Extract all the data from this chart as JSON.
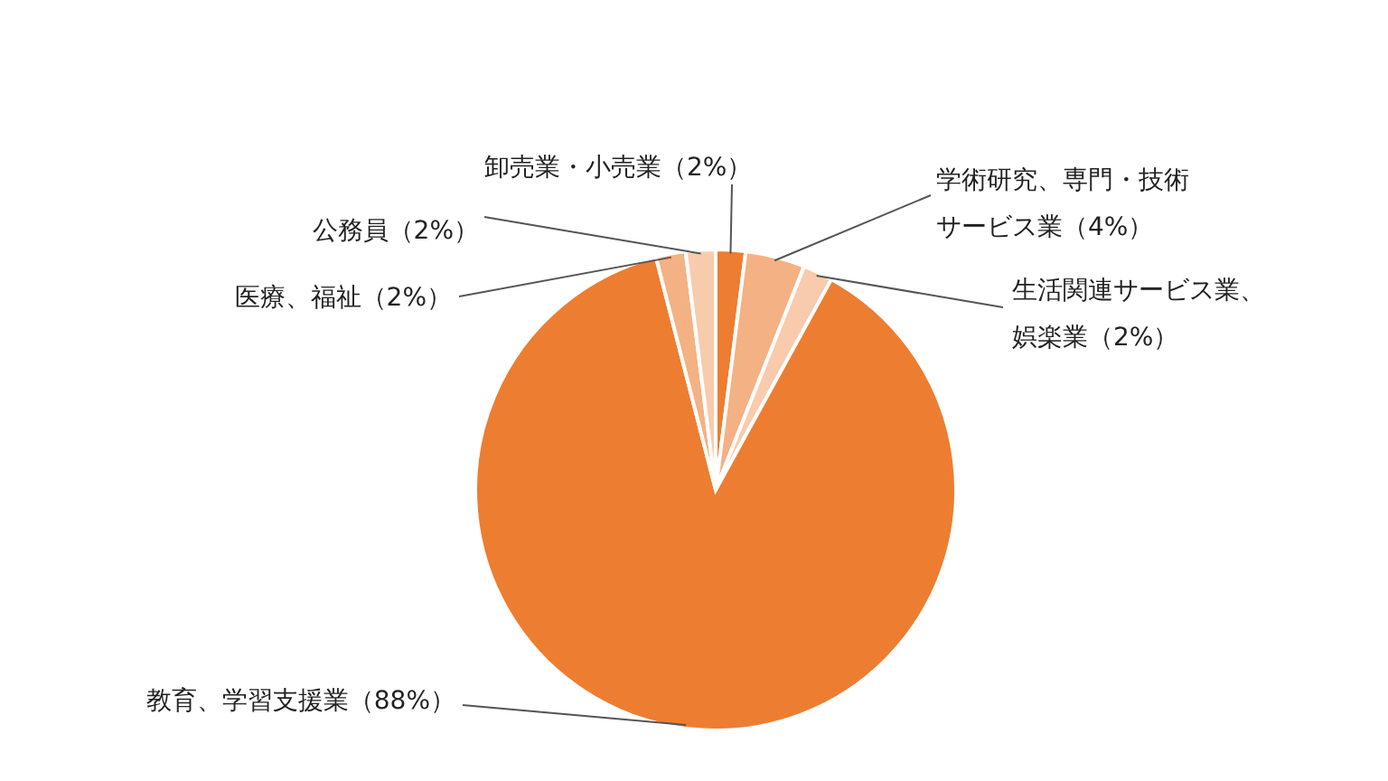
{
  "chart_data": {
    "type": "pie",
    "categories": [
      "卸売業・小売業（2%）",
      "学術研究、専門・技術サービス業（4%）",
      "生活関連サービス業、娯楽業（2%）",
      "教育、学習支援業（88%）",
      "医療、福祉（2%）",
      "公務員（2%）"
    ],
    "values": [
      2,
      4,
      2,
      88,
      2,
      2
    ],
    "colors": [
      "#ed7d31",
      "#f4b183",
      "#f8cbad",
      "#ed7d31",
      "#f4b183",
      "#f8cbad"
    ]
  }
}
